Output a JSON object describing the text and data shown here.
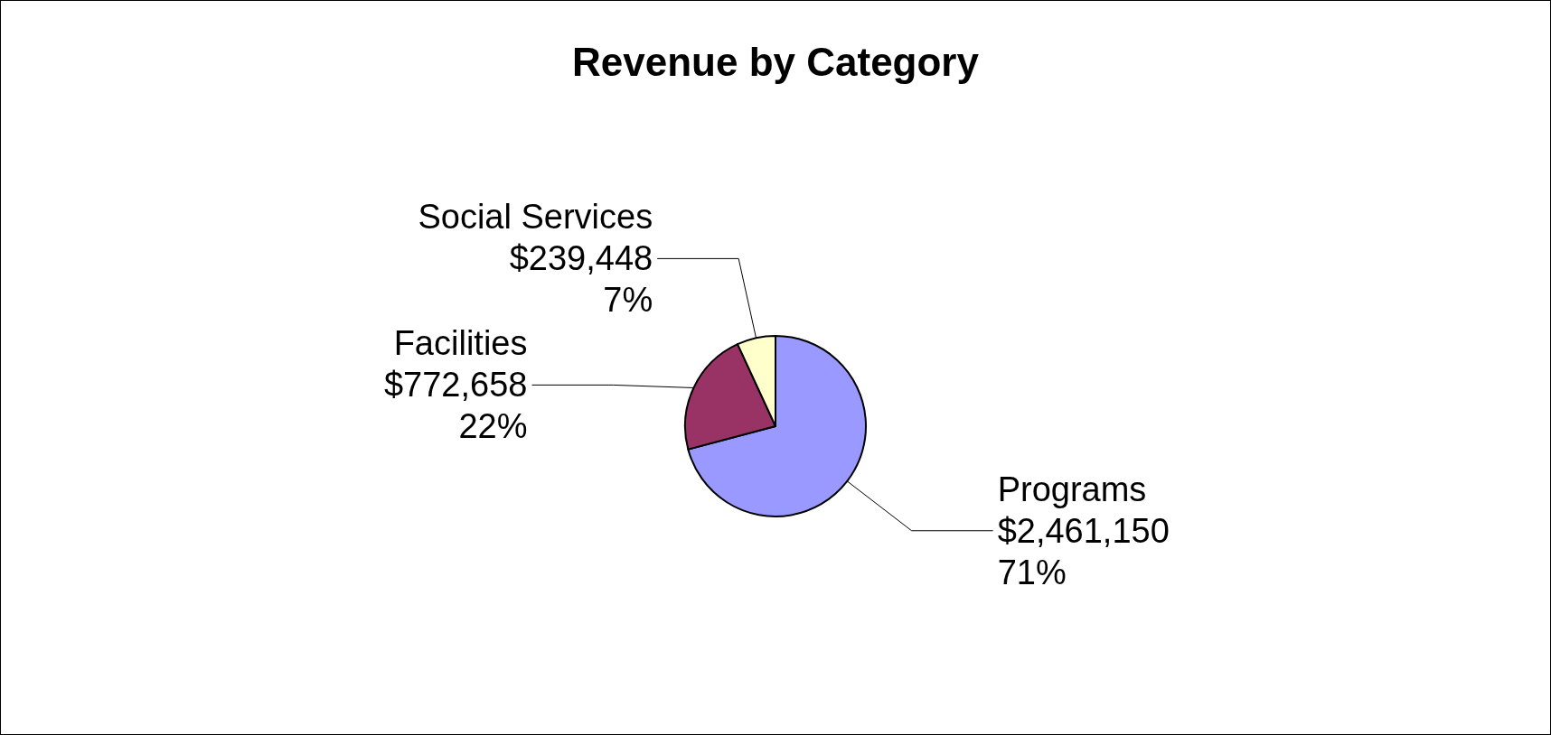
{
  "chart_data": {
    "type": "pie",
    "title": "Revenue by Category",
    "categories": [
      "Programs",
      "Facilities",
      "Social Services"
    ],
    "values": [
      2461150,
      772658,
      239448
    ],
    "colors": [
      "#9999ff",
      "#993366",
      "#ffffcc"
    ],
    "value_labels": [
      "$2,461,150\n71%",
      "$772,658\n22%",
      "$239,448\n7%"
    ],
    "legend": false
  }
}
